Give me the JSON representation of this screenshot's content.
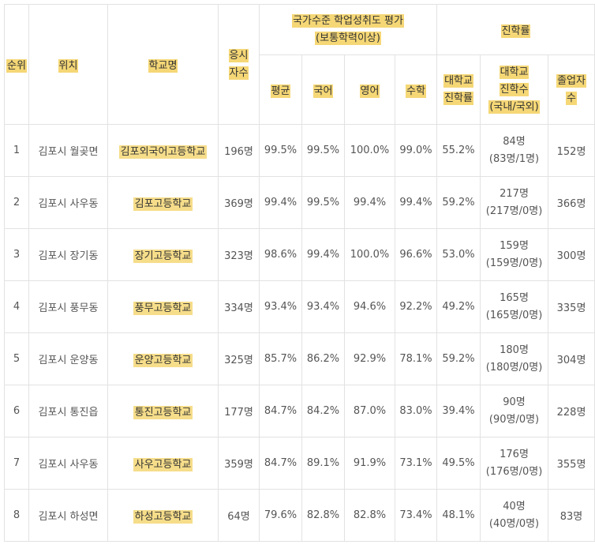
{
  "headers": {
    "rank": "순위",
    "location": "위치",
    "school": "학교명",
    "applicants_l1": "응시",
    "applicants_l2": "자수",
    "assessment_l1": "국가수준 학업성취도 평가",
    "assessment_l2": "(보통학력이상)",
    "average": "평균",
    "korean": "국어",
    "english": "영어",
    "math": "수학",
    "advancement": "진학률",
    "college_rate_l1": "대학교",
    "college_rate_l2": "진학률",
    "college_count_l1": "대학교",
    "college_count_l2": "진학수",
    "college_count_l3": "(국내/국외)",
    "graduates_l1": "졸업자",
    "graduates_l2": "수"
  },
  "rows": [
    {
      "rank": "1",
      "location": "김포시 월곶면",
      "school": "김포외국어고등학교",
      "applicants": "196명",
      "average": "99.5%",
      "korean": "99.5%",
      "english": "100.0%",
      "math": "99.0%",
      "college_rate": "55.2%",
      "college_count": "84명",
      "college_split": "(83명/1명)",
      "graduates": "152명"
    },
    {
      "rank": "2",
      "location": "김포시 사우동",
      "school": "김포고등학교",
      "applicants": "369명",
      "average": "99.4%",
      "korean": "99.5%",
      "english": "99.4%",
      "math": "99.4%",
      "college_rate": "59.2%",
      "college_count": "217명",
      "college_split": "(217명/0명)",
      "graduates": "366명"
    },
    {
      "rank": "3",
      "location": "김포시 장기동",
      "school": "장기고등학교",
      "applicants": "323명",
      "average": "98.6%",
      "korean": "99.4%",
      "english": "100.0%",
      "math": "96.6%",
      "college_rate": "53.0%",
      "college_count": "159명",
      "college_split": "(159명/0명)",
      "graduates": "300명"
    },
    {
      "rank": "4",
      "location": "김포시 풍무동",
      "school": "풍무고등학교",
      "applicants": "334명",
      "average": "93.4%",
      "korean": "93.4%",
      "english": "94.6%",
      "math": "92.2%",
      "college_rate": "49.2%",
      "college_count": "165명",
      "college_split": "(165명/0명)",
      "graduates": "335명"
    },
    {
      "rank": "5",
      "location": "김포시 운양동",
      "school": "운양고등학교",
      "applicants": "325명",
      "average": "85.7%",
      "korean": "86.2%",
      "english": "92.9%",
      "math": "78.1%",
      "college_rate": "59.2%",
      "college_count": "180명",
      "college_split": "(180명/0명)",
      "graduates": "304명"
    },
    {
      "rank": "6",
      "location": "김포시 통진읍",
      "school": "통진고등학교",
      "applicants": "177명",
      "average": "84.7%",
      "korean": "84.2%",
      "english": "87.0%",
      "math": "83.0%",
      "college_rate": "39.4%",
      "college_count": "90명",
      "college_split": "(90명/0명)",
      "graduates": "228명"
    },
    {
      "rank": "7",
      "location": "김포시 사우동",
      "school": "사우고등학교",
      "applicants": "359명",
      "average": "84.7%",
      "korean": "89.1%",
      "english": "91.9%",
      "math": "73.1%",
      "college_rate": "49.5%",
      "college_count": "176명",
      "college_split": "(176명/0명)",
      "graduates": "355명"
    },
    {
      "rank": "8",
      "location": "김포시 하성면",
      "school": "하성고등학교",
      "applicants": "64명",
      "average": "79.6%",
      "korean": "82.8%",
      "english": "82.8%",
      "math": "73.4%",
      "college_rate": "48.1%",
      "college_count": "40명",
      "college_split": "(40명/0명)",
      "graduates": "83명"
    }
  ],
  "colors": {
    "highlight": "#f5d776",
    "border": "#e2e2e2",
    "text": "#555555"
  }
}
